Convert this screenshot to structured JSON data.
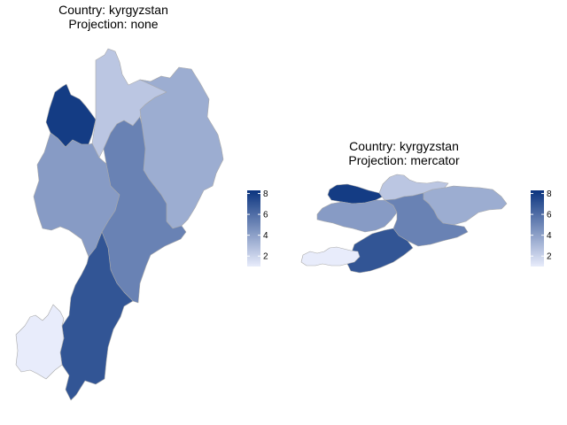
{
  "colors": {
    "low": "#e8ecfb",
    "high": "#0b347f",
    "border": "#a9a9a9",
    "background": "#ffffff"
  },
  "legend": {
    "min": 1,
    "max": 8.3,
    "ticks": [
      2,
      4,
      6,
      8
    ],
    "tick_labels": [
      "2",
      "4",
      "6",
      "8"
    ]
  },
  "panel_left": {
    "title_line1": "Country: kyrgyzstan",
    "title_line2": "Projection: none",
    "regions": [
      {
        "value": 8
      },
      {
        "value": 2.5
      },
      {
        "value": 3.5
      },
      {
        "value": 4.2
      },
      {
        "value": 5.2
      },
      {
        "value": 7
      },
      {
        "value": 1
      }
    ]
  },
  "panel_right": {
    "title_line1": "Country: kyrgyzstan",
    "title_line2": "Projection: mercator",
    "regions": [
      {
        "value": 8
      },
      {
        "value": 2.5
      },
      {
        "value": 3.5
      },
      {
        "value": 4.2
      },
      {
        "value": 5.2
      },
      {
        "value": 7
      },
      {
        "value": 1
      }
    ]
  }
}
